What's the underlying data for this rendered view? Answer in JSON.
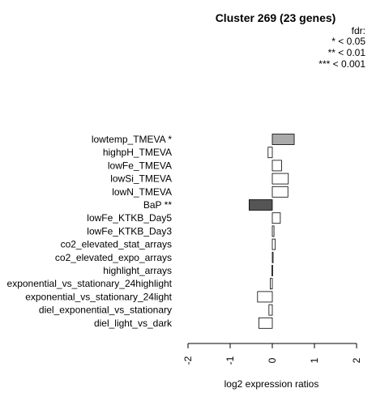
{
  "chart_data": {
    "type": "bar",
    "orientation": "horizontal",
    "title": "Cluster 269 (23 genes)",
    "xlabel": "log2 expression ratios",
    "ylabel": "",
    "xlim": [
      -2,
      2
    ],
    "xticks": [
      "-2",
      "-1",
      "0",
      "1",
      "2"
    ],
    "grid": false,
    "legend": {
      "placement": "top-right",
      "title": "fdr:",
      "entries": [
        "* < 0.05",
        "** < 0.01",
        "*** < 0.001"
      ]
    },
    "categories": [
      "lowtemp_TMEVA *",
      "highpH_TMEVA",
      "lowFe_TMEVA",
      "lowSi_TMEVA",
      "lowN_TMEVA",
      "BaP **",
      "lowFe_KTKB_Day5",
      "lowFe_KTKB_Day3",
      "co2_elevated_stat_arrays",
      "co2_elevated_expo_arrays",
      "highlight_arrays",
      "exponential_vs_stationary_24highlight",
      "exponential_vs_stationary_24light",
      "diel_exponential_vs_stationary",
      "diel_light_vs_dark"
    ],
    "values": [
      0.52,
      -0.1,
      0.22,
      0.38,
      0.37,
      -0.55,
      0.19,
      0.04,
      0.07,
      0.0,
      -0.01,
      -0.05,
      -0.35,
      -0.08,
      -0.32
    ],
    "significance": [
      "*",
      "",
      "",
      "",
      "",
      "**",
      "",
      "",
      "",
      "",
      "",
      "",
      "",
      "",
      ""
    ],
    "colors": {
      "*": "#aaaaaa",
      "**": "#555555",
      "": "#ffffff",
      "stroke": "#000000"
    }
  }
}
